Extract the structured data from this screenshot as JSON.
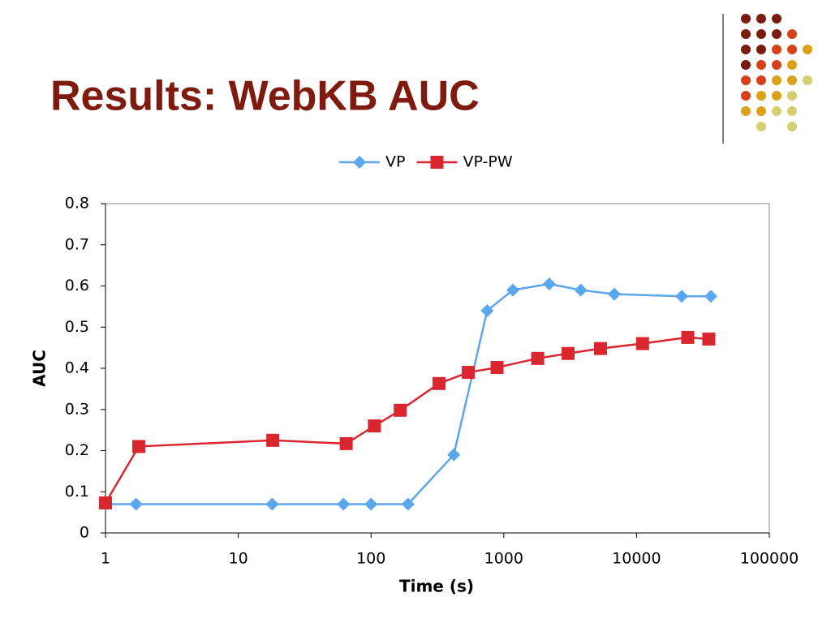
{
  "chart_data": {
    "type": "line",
    "title": "Results: WebKB AUC",
    "x_label": "Time (s)",
    "y_label": "AUC",
    "xscale": "log",
    "xlim": [
      1,
      100000
    ],
    "xticks": [
      1,
      10,
      100,
      1000,
      10000,
      100000
    ],
    "ylim": [
      0,
      0.8
    ],
    "yticks": [
      0,
      0.1,
      0.2,
      0.3,
      0.4,
      0.5,
      0.6,
      0.7,
      0.8
    ],
    "grid": false,
    "legend": "top",
    "series": [
      {
        "name": "VP",
        "color": "#5aa7ef",
        "marker": "diamond",
        "x": [
          1,
          1.7,
          18,
          62,
          100,
          190,
          420,
          750,
          1170,
          2200,
          3800,
          6800,
          21900,
          36300
        ],
        "values": [
          0.07,
          0.07,
          0.07,
          0.07,
          0.07,
          0.07,
          0.19,
          0.54,
          0.59,
          0.605,
          0.59,
          0.58,
          0.575,
          0.575
        ]
      },
      {
        "name": "VP-PW",
        "color": "#d9262f",
        "marker": "square",
        "x": [
          1,
          1.78,
          18.2,
          65,
          106,
          166,
          325,
          540,
          890,
          1800,
          3050,
          5350,
          11100,
          24300,
          35000
        ],
        "values": [
          0.073,
          0.21,
          0.225,
          0.217,
          0.26,
          0.298,
          0.363,
          0.39,
          0.402,
          0.424,
          0.436,
          0.448,
          0.46,
          0.475,
          0.471
        ]
      }
    ]
  }
}
